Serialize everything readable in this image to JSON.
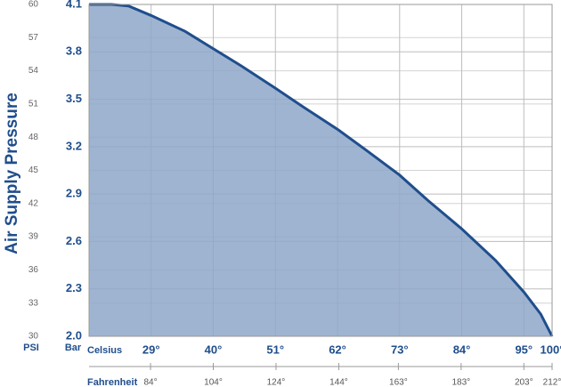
{
  "chart_data": {
    "type": "area",
    "axis_title": "Air Supply Pressure",
    "ylabel": "Bar",
    "y2label": "PSI",
    "xlabel": "Celsius",
    "x2label": "Fahrenheit",
    "x": [
      18,
      22,
      25,
      29,
      35,
      40,
      45,
      51,
      56,
      62,
      67,
      73,
      78,
      84,
      90,
      95,
      98,
      100
    ],
    "series": [
      {
        "name": "Bar",
        "color": "#1f4e8c",
        "fill": "#8ea7c9",
        "values": [
          4.1,
          4.1,
          4.09,
          4.03,
          3.93,
          3.82,
          3.71,
          3.57,
          3.45,
          3.31,
          3.18,
          3.02,
          2.86,
          2.68,
          2.48,
          2.28,
          2.14,
          2.0
        ]
      }
    ],
    "xlim": [
      18,
      100
    ],
    "xticks": [
      {
        "value": 29,
        "label": "29°"
      },
      {
        "value": 40,
        "label": "40°"
      },
      {
        "value": 51,
        "label": "51°"
      },
      {
        "value": 62,
        "label": "62°"
      },
      {
        "value": 73,
        "label": "73°"
      },
      {
        "value": 84,
        "label": "84°"
      },
      {
        "value": 95,
        "label": "95°"
      },
      {
        "value": 100,
        "label": "100°"
      }
    ],
    "x2lim": [
      64.4,
      212
    ],
    "x2ticks": [
      {
        "value": 84,
        "label": "84°"
      },
      {
        "value": 104,
        "label": "104°"
      },
      {
        "value": 124,
        "label": "124°"
      },
      {
        "value": 144,
        "label": "144°"
      },
      {
        "value": 163,
        "label": "163°"
      },
      {
        "value": 183,
        "label": "183°"
      },
      {
        "value": 203,
        "label": "203°"
      },
      {
        "value": 212,
        "label": "212°"
      }
    ],
    "ylim": [
      2.0,
      4.1
    ],
    "yticks": [
      {
        "value": 2.0,
        "label": "2.0"
      },
      2.3,
      2.6,
      2.9,
      3.2,
      3.5,
      3.8,
      4.1
    ],
    "y2lim": [
      30,
      60
    ],
    "y2ticks": [
      30,
      33,
      36,
      39,
      42,
      45,
      48,
      51,
      54,
      57,
      60
    ],
    "grid": true
  }
}
